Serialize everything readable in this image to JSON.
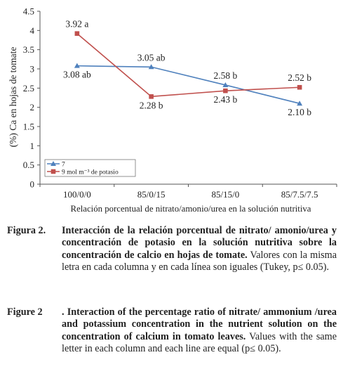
{
  "chart_data": {
    "type": "line",
    "categories": [
      "100/0/0",
      "85/0/15",
      "85/15/0",
      "85/7.5/7.5"
    ],
    "series": [
      {
        "name": "7",
        "color": "#4f81bd",
        "marker": "triangle",
        "values": [
          3.08,
          3.05,
          2.58,
          2.1
        ],
        "labels": [
          "3.08 ab",
          "3.05 ab",
          "2.58 b",
          "2.10 b"
        ],
        "label_pos": [
          "below",
          "above",
          "above",
          "below"
        ]
      },
      {
        "name": "9 mol m⁻³ de potasio",
        "color": "#c0504d",
        "marker": "square",
        "values": [
          3.92,
          2.28,
          2.43,
          2.52
        ],
        "labels": [
          "3.92 a",
          "2.28 b",
          "2.43 b",
          "2.52 b"
        ],
        "label_pos": [
          "above",
          "below",
          "below",
          "above"
        ]
      }
    ],
    "xlabel": "Relación porcentual de nitrato/amonio/urea en la solución nutritiva",
    "ylabel": "(%) Ca en hojas de tomate",
    "ylim": [
      0,
      4.5
    ],
    "yticks": [
      "0",
      "0.5",
      "1",
      "1.5",
      "2",
      "2.5",
      "3",
      "3.5",
      "4",
      "4.5"
    ],
    "grid": false,
    "legend_position": "bottom-left"
  },
  "captions": {
    "es": {
      "label": "Figura 2.",
      "bold": "Interacción de la relación porcentual de nitrato/ amonio/urea y concentración de potasio en la solución nutritiva sobre la concentración de calcio en hojas de tomate.",
      "rest": " Valores con la misma letra en cada columna y en cada línea son iguales (Tukey, p≤ 0.05)."
    },
    "en": {
      "label": "Figure 2",
      "bold": ". Interaction of the percentage ratio of nitrate/ ammonium /urea and potassium concentration in the nutrient solution on the concentration of calcium in tomato leaves.",
      "rest": " Values with the same letter in each column and each line are equal (p≤ 0.05)."
    }
  }
}
